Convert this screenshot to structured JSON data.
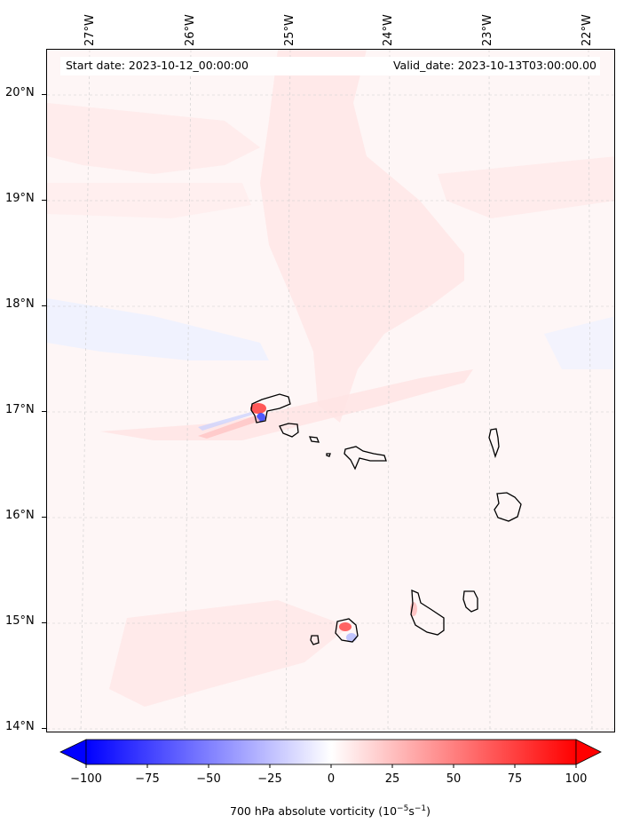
{
  "header": {
    "start_date": "Start date: 2023-10-12_00:00:00",
    "valid_date": "Valid_date: 2023-10-13T03:00:00.00"
  },
  "lat_labels": [
    "20°N",
    "19°N",
    "18°N",
    "17°N",
    "16°N",
    "15°N",
    "14°N"
  ],
  "lon_labels": [
    "27°W",
    "26°W",
    "25°W",
    "24°W",
    "23°W",
    "22°W"
  ],
  "colorbar": {
    "ticks": [
      "−100",
      "−75",
      "−50",
      "−25",
      "0",
      "25",
      "50",
      "75",
      "100"
    ],
    "title_main": "700 hPa absolute vorticity (10",
    "title_exp1": "−5",
    "title_mid": "s",
    "title_exp2": "−1",
    "title_end": ")",
    "min_color": "#0000ff",
    "mid_color": "#ffffff",
    "max_color": "#ff0000"
  },
  "map": {
    "background_color": "#fef6f6",
    "positive_tint": "#ffe8e8",
    "negative_tint": "#f0f3ff",
    "land_outline_color": "#000000",
    "gridline_color": "#cccccc"
  }
}
